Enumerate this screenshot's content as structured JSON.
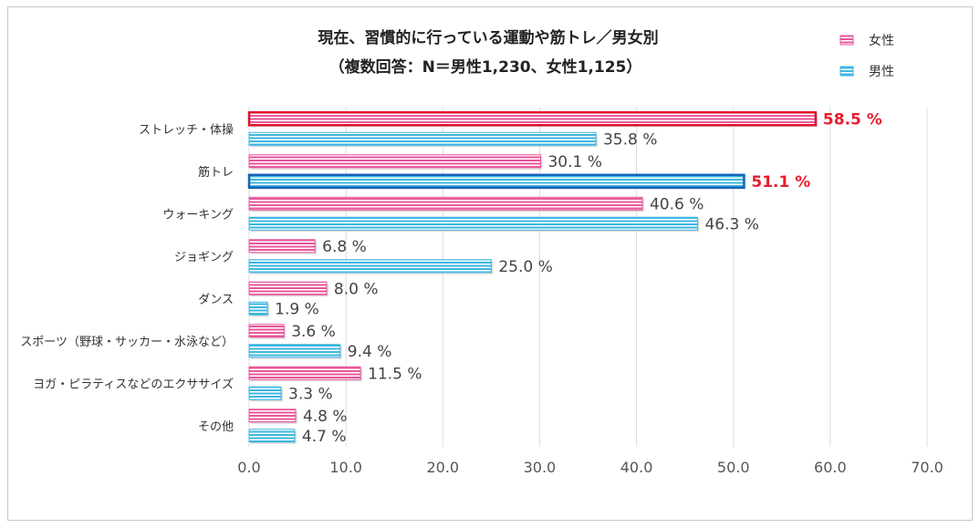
{
  "chart_data": {
    "type": "bar",
    "orientation": "horizontal",
    "title": "現在、習慣的に行っている運動や筋トレ／男女別",
    "subtitle": "（複数回答：N＝男性1,230、女性1,125）",
    "categories": [
      "ストレッチ・体操",
      "筋トレ",
      "ウォーキング",
      "ジョギング",
      "ダンス",
      "スポーツ（野球・サッカー・水泳など）",
      "ヨガ・ピラティスなどのエクササイズ",
      "その他"
    ],
    "series": [
      {
        "name": "女性",
        "color": "#e8559a",
        "values": [
          58.5,
          30.1,
          40.6,
          6.8,
          8.0,
          3.6,
          11.5,
          4.8
        ]
      },
      {
        "name": "男性",
        "color": "#3cb6e0",
        "values": [
          35.8,
          51.1,
          46.3,
          25.0,
          1.9,
          9.4,
          3.3,
          4.7
        ]
      }
    ],
    "value_labels": {
      "女性": [
        "58.5 %",
        "30.1 %",
        "40.6 %",
        "6.8 %",
        "8.0 %",
        "3.6 %",
        "11.5 %",
        "4.8 %"
      ],
      "男性": [
        "35.8 %",
        "51.1 %",
        "46.3 %",
        "25.0 %",
        "1.9 %",
        "9.4 %",
        "3.3 %",
        "4.7 %"
      ]
    },
    "highlights": [
      {
        "series": "女性",
        "category": "ストレッチ・体操",
        "border_color": "#e0102a",
        "label_color": "#ea1b2b"
      },
      {
        "series": "男性",
        "category": "筋トレ",
        "border_color": "#1565b8",
        "label_color": "#ea1b2b"
      }
    ],
    "xlim": [
      0,
      70
    ],
    "xticks": [
      0,
      10,
      20,
      30,
      40,
      50,
      60,
      70
    ],
    "xtick_labels": [
      "0.0",
      "10.0",
      "20.0",
      "30.0",
      "40.0",
      "50.0",
      "60.0",
      "70.0"
    ],
    "grid": "vertical",
    "legend": "top-right"
  }
}
